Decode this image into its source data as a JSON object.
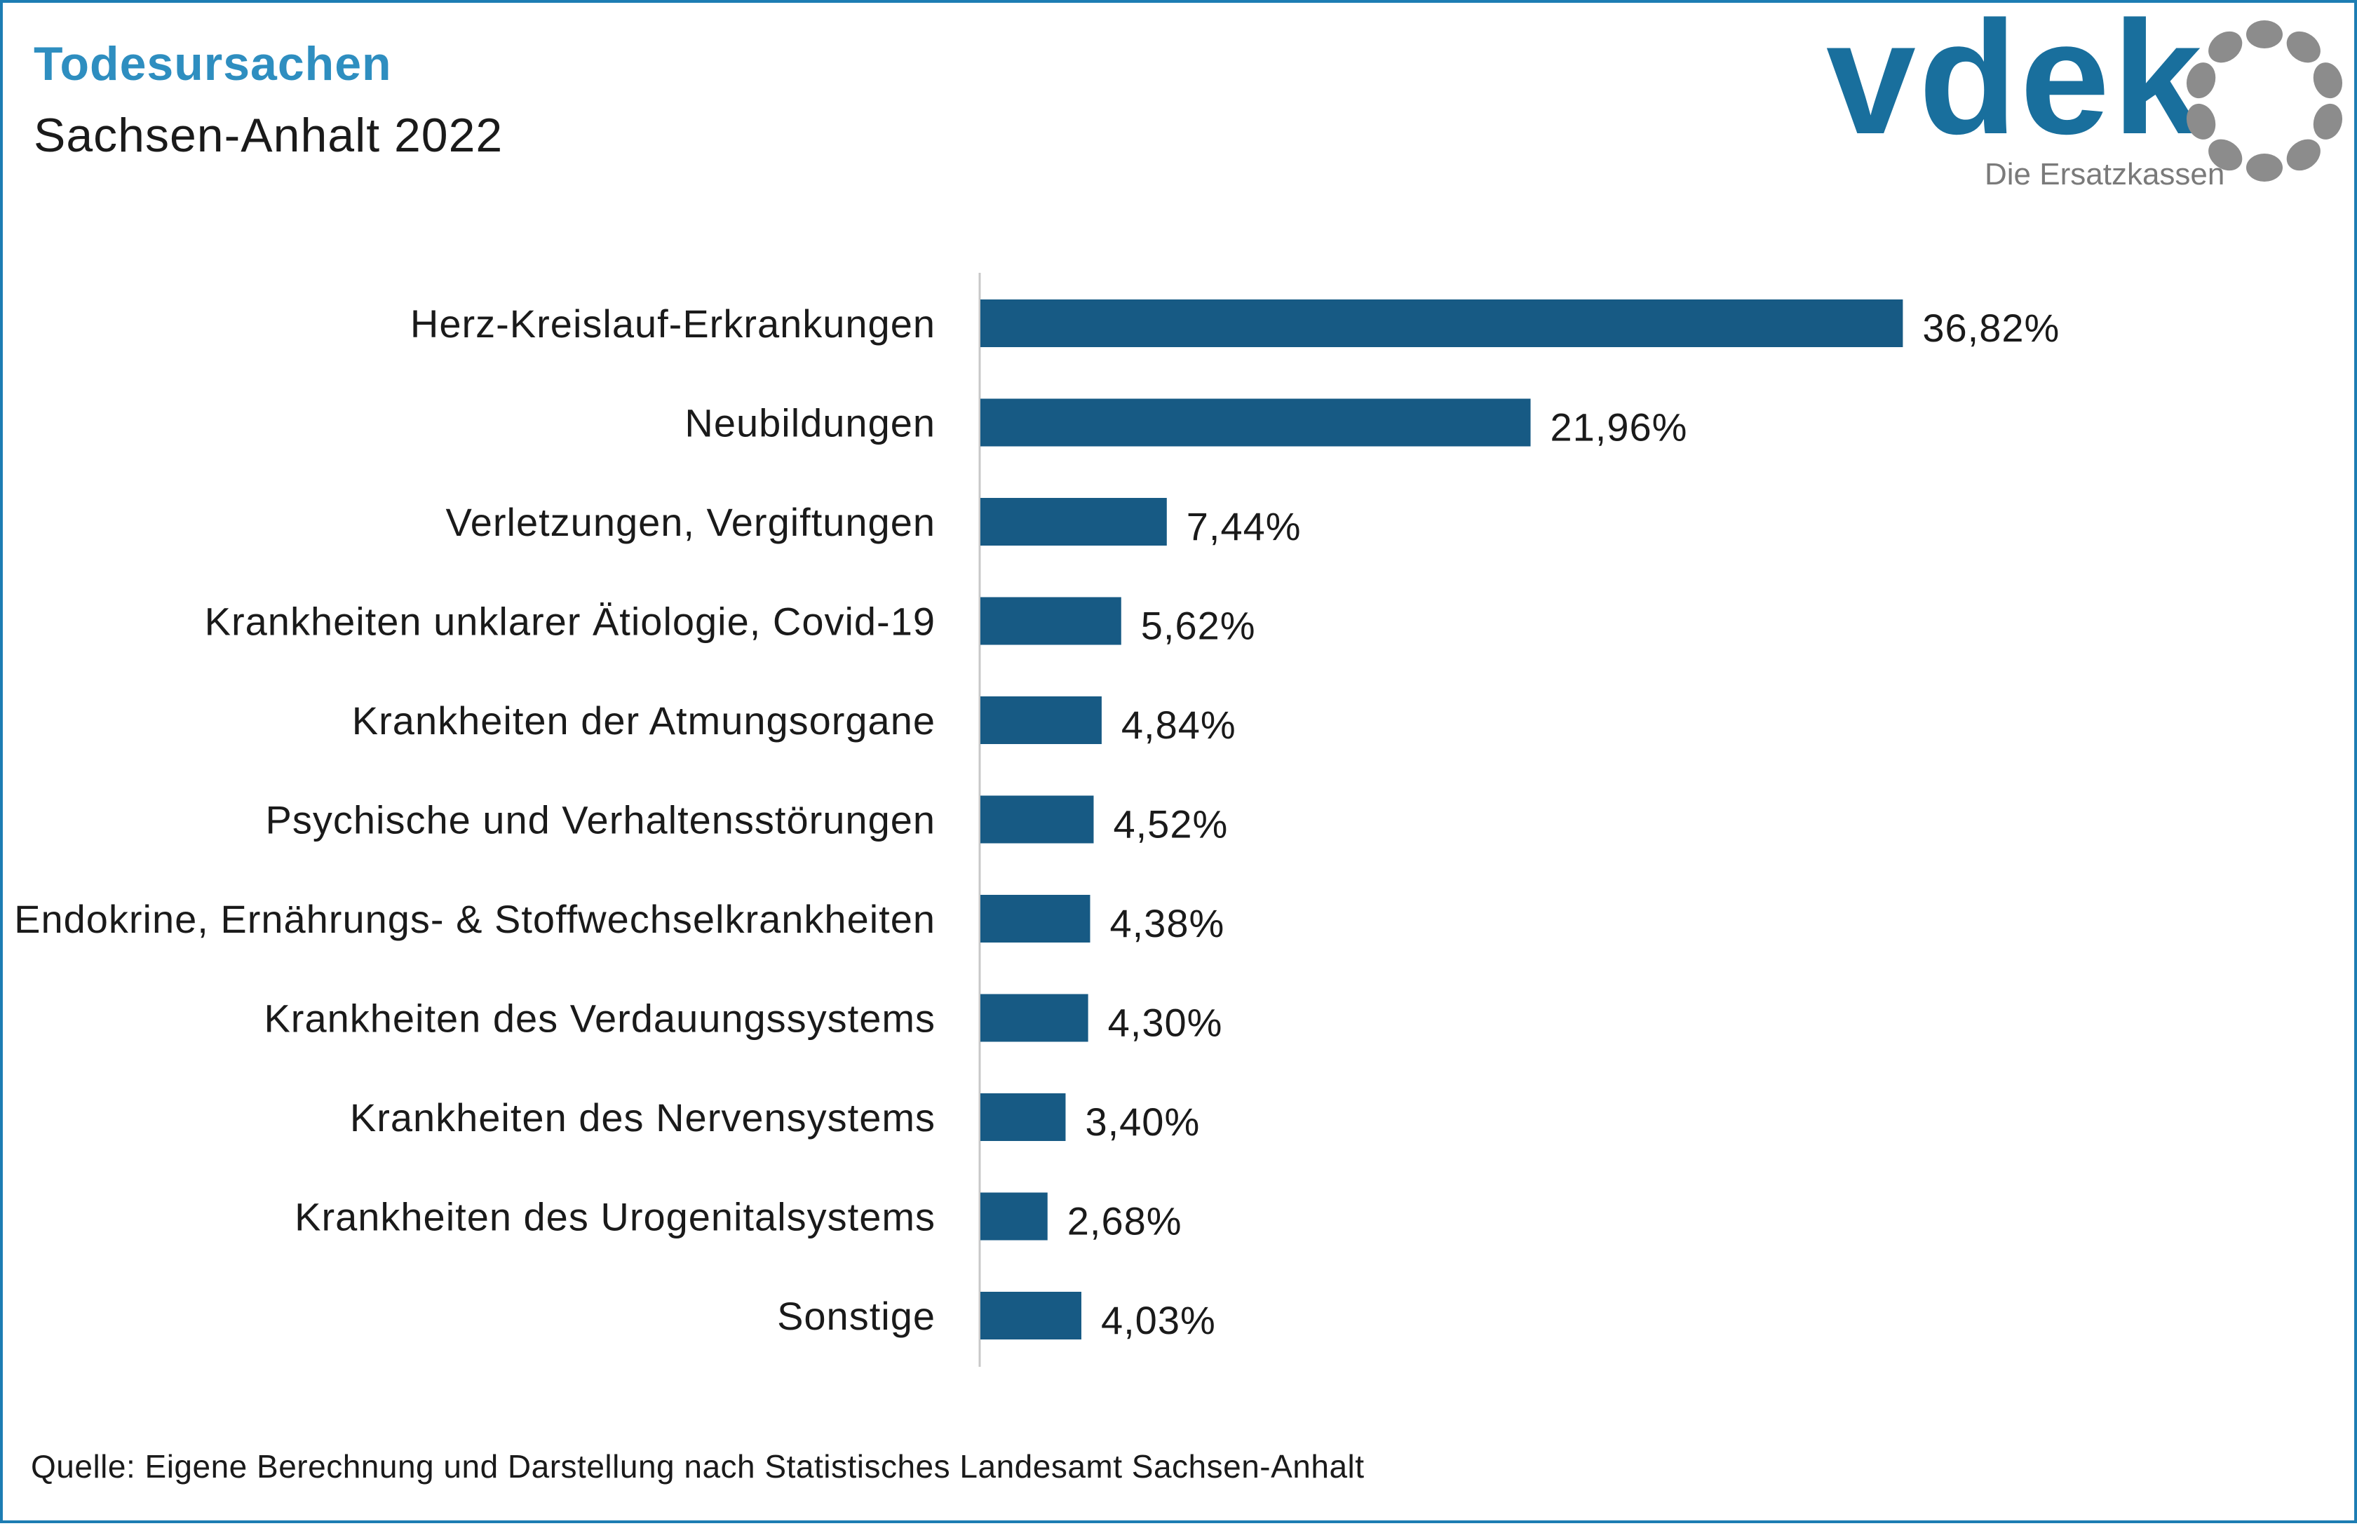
{
  "header": {
    "title": "Todesursachen",
    "subtitle": "Sachsen-Anhalt 2022"
  },
  "logo": {
    "wordmark": "vdek",
    "tagline": "Die Ersatzkassen",
    "icon": "vdek-ring-icon",
    "color_primary": "#196f9d",
    "color_secondary": "#8c8c8c"
  },
  "colors": {
    "bar": "#175a84",
    "title": "#2e8ec0",
    "frame": "#1d7db3",
    "axis": "#c8c8c8"
  },
  "chart_data": {
    "type": "bar",
    "orientation": "horizontal",
    "title": "Todesursachen",
    "subtitle": "Sachsen-Anhalt 2022",
    "xlabel": "",
    "ylabel": "",
    "grid": false,
    "legend": "none",
    "xlim": [
      0,
      40
    ],
    "categories": [
      "Herz-Kreislauf-Erkrankungen",
      "Neubildungen",
      "Verletzungen, Vergiftungen",
      "Krankheiten unklarer Ätiologie, Covid-19",
      "Krankheiten der Atmungsorgane",
      "Psychische und Verhaltensstörungen",
      "Endokrine, Ernährungs- & Stoffwechselkrankheiten",
      "Krankheiten des Verdauungssystems",
      "Krankheiten des Nervensystems",
      "Krankheiten des Urogenitalsystems",
      "Sonstige"
    ],
    "values": [
      36.82,
      21.96,
      7.44,
      5.62,
      4.84,
      4.52,
      4.38,
      4.3,
      3.4,
      2.68,
      4.03
    ],
    "value_labels": [
      "36,82%",
      "21,96%",
      "7,44%",
      "5,62%",
      "4,84%",
      "4,52%",
      "4,38%",
      "4,30%",
      "3,40%",
      "2,68%",
      "4,03%"
    ]
  },
  "footer": {
    "source": "Quelle: Eigene Berechnung und Darstellung nach Statistisches Landesamt Sachsen-Anhalt"
  }
}
